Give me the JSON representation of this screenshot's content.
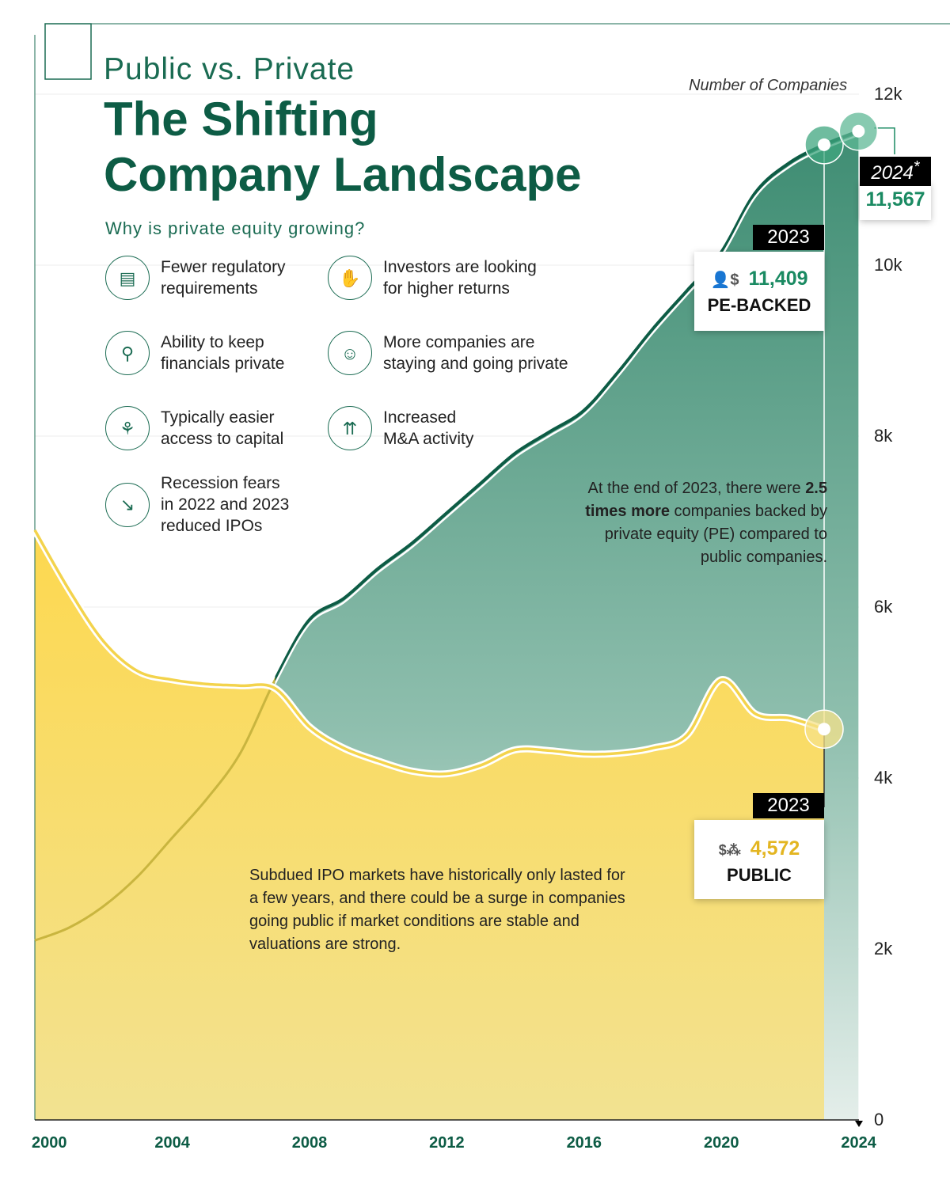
{
  "header": {
    "subtitle": "Public vs. Private",
    "title_line1": "The Shifting",
    "title_line2": "Company Landscape",
    "question": "Why is private equity growing?"
  },
  "reasons": [
    {
      "icon": "clipboard-icon",
      "line1": "Fewer regulatory",
      "line2": "requirements",
      "line3": ""
    },
    {
      "icon": "money-hand-icon",
      "line1": "Investors are looking",
      "line2": "for higher returns",
      "line3": ""
    },
    {
      "icon": "magnifier-dollar-icon",
      "line1": "Ability to keep",
      "line2": "financials private",
      "line3": ""
    },
    {
      "icon": "person-dollar-icon",
      "line1": "More companies are",
      "line2": "staying and going private",
      "line3": ""
    },
    {
      "icon": "plant-dollar-icon",
      "line1": "Typically easier",
      "line2": "access to capital",
      "line3": ""
    },
    {
      "icon": "arrows-up-icon",
      "line1": "Increased",
      "line2": "M&A activity",
      "line3": ""
    },
    {
      "icon": "chart-down-icon",
      "line1": "Recession fears",
      "line2": "in 2022 and 2023",
      "line3": "reduced IPOs"
    }
  ],
  "colors": {
    "pe": "#0d5c45",
    "pe_fill": "#4f977f",
    "public": "#f5d24a",
    "title": "#0d5c45"
  },
  "chart_data": {
    "type": "area",
    "title": "The Shifting Company Landscape",
    "ylabel": "Number of Companies",
    "ylim": [
      0,
      12000
    ],
    "yticks": [
      "0",
      "2k",
      "4k",
      "6k",
      "8k",
      "10k",
      "12k"
    ],
    "ytick_values": [
      0,
      2000,
      4000,
      6000,
      8000,
      10000,
      12000
    ],
    "xticks": [
      "2000",
      "2004",
      "2008",
      "2012",
      "2016",
      "2020",
      "2024"
    ],
    "xlim": [
      2000,
      2024
    ],
    "series": [
      {
        "name": "PE-backed",
        "x": [
          2000,
          2001,
          2002,
          2003,
          2004,
          2005,
          2006,
          2007,
          2008,
          2009,
          2010,
          2011,
          2012,
          2013,
          2014,
          2015,
          2016,
          2017,
          2018,
          2019,
          2020,
          2021,
          2022,
          2023,
          2024
        ],
        "values": [
          2100,
          2250,
          2500,
          2850,
          3300,
          3750,
          4300,
          5150,
          5850,
          6100,
          6450,
          6750,
          7100,
          7450,
          7800,
          8050,
          8300,
          8750,
          9250,
          9700,
          10150,
          10850,
          11200,
          11409,
          11567
        ]
      },
      {
        "name": "Public",
        "x": [
          2000,
          2001,
          2002,
          2003,
          2004,
          2005,
          2006,
          2007,
          2008,
          2009,
          2010,
          2011,
          2012,
          2013,
          2014,
          2015,
          2016,
          2017,
          2018,
          2019,
          2020,
          2021,
          2022,
          2023
        ],
        "values": [
          6900,
          6200,
          5600,
          5250,
          5150,
          5100,
          5080,
          5050,
          4600,
          4350,
          4200,
          4080,
          4050,
          4150,
          4330,
          4320,
          4280,
          4290,
          4350,
          4500,
          5150,
          4750,
          4700,
          4572
        ]
      }
    ]
  },
  "callouts": {
    "pe_2023": {
      "year": "2023",
      "value": "11,409",
      "label": "PE-BACKED"
    },
    "pe_2024": {
      "year": "2024",
      "sup": "*",
      "value": "11,567"
    },
    "public_2023": {
      "year": "2023",
      "value": "4,572",
      "label": "PUBLIC"
    }
  },
  "notes": {
    "pe_note_pre": "At the end of 2023, there were ",
    "pe_note_bold": "2.5 times more",
    "pe_note_post": " companies backed by private equity (PE) compared to public companies.",
    "public_note": "Subdued IPO markets have historically only lasted for a few years, and there could be a surge in companies going public if market conditions are stable and valuations are strong."
  }
}
